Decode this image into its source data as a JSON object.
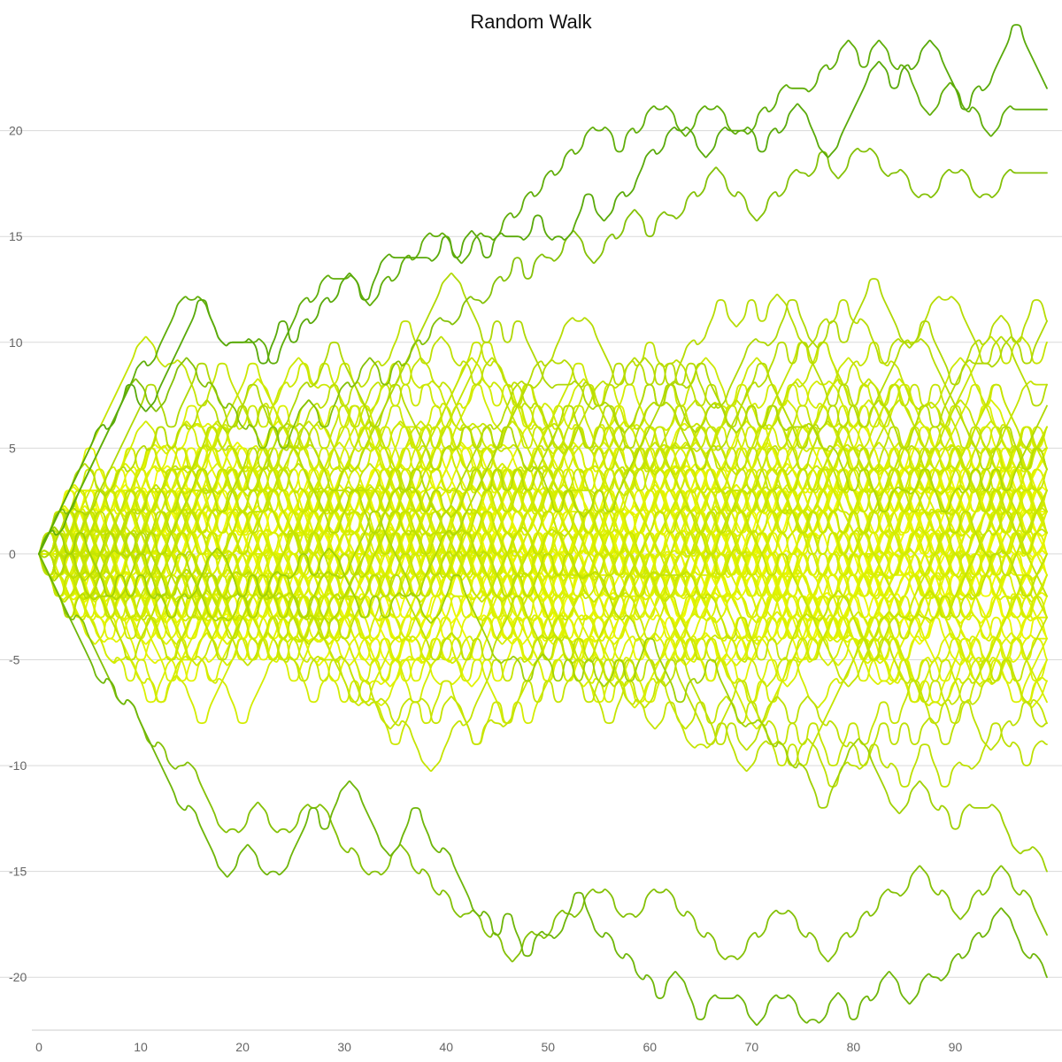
{
  "chart_data": {
    "type": "line",
    "title": "Random Walk",
    "xlabel": "",
    "ylabel": "",
    "xlim": [
      0,
      99
    ],
    "ylim": [
      -22.5,
      24.5
    ],
    "x_ticks": [
      0,
      10,
      20,
      30,
      40,
      50,
      60,
      70,
      80,
      90
    ],
    "y_ticks": [
      20,
      15,
      10,
      5,
      0,
      -5,
      -10,
      -15,
      -20
    ],
    "grid": "horizontal",
    "legend": "none",
    "n_series": 100,
    "n_steps": 100,
    "step_size": 1,
    "color_from": "#f7ff00",
    "color_to": "#5aaa0a",
    "grid_color": "#d9d9d9",
    "axis_color": "#cccccc",
    "series": [
      {
        "values": [
          0,
          1,
          2,
          3,
          4,
          5,
          6,
          6,
          7,
          8,
          7,
          7,
          8,
          9,
          10,
          11,
          12,
          11,
          10,
          10,
          10,
          10,
          9,
          10,
          11,
          10,
          11,
          11,
          12,
          12,
          13,
          13,
          12,
          13,
          14,
          14,
          14,
          14,
          14,
          14,
          15,
          14,
          15,
          15,
          14,
          15,
          15,
          15,
          15,
          16,
          15,
          15,
          15,
          16,
          17,
          16,
          16,
          17,
          17,
          18,
          19,
          19,
          20,
          20,
          20,
          19,
          19,
          20,
          20,
          20,
          20,
          19,
          20,
          20,
          21,
          21,
          20,
          19,
          19,
          20,
          21,
          22,
          23,
          23,
          22,
          23,
          23,
          24,
          24,
          23,
          22,
          21,
          22,
          22,
          23,
          24,
          25,
          24,
          23,
          22
        ]
      },
      {
        "values": [
          0,
          -1,
          -2,
          -3,
          -4,
          -5,
          -6,
          -6,
          -7,
          -7,
          -8,
          -9,
          -10,
          -11,
          -12,
          -12,
          -13,
          -14,
          -15,
          -15,
          -14,
          -14,
          -15,
          -15,
          -15,
          -14,
          -13,
          -12,
          -13,
          -12,
          -11,
          -11,
          -12,
          -13,
          -14,
          -14,
          -13,
          -12,
          -13,
          -14,
          -14,
          -15,
          -16,
          -17,
          -17,
          -18,
          -17,
          -18,
          -19,
          -18,
          -18,
          -18,
          -17,
          -16,
          -17,
          -18,
          -18,
          -19,
          -19,
          -20,
          -20,
          -21,
          -20,
          -20,
          -21,
          -22,
          -21,
          -21,
          -21,
          -21,
          -22,
          -22,
          -21,
          -21,
          -21,
          -22,
          -22,
          -22,
          -21,
          -21,
          -22,
          -21,
          -21,
          -20,
          -20,
          -21,
          -21,
          -20,
          -20,
          -20,
          -19,
          -19,
          -18,
          -18,
          -17,
          -17,
          -18,
          -19,
          -19,
          -20
        ]
      },
      {
        "values": [
          0,
          1,
          1,
          2,
          3,
          4,
          5,
          6,
          7,
          8,
          9,
          9,
          10,
          11,
          12,
          12,
          12,
          11,
          10,
          10,
          10,
          10,
          10,
          9,
          10,
          11,
          12,
          12,
          13,
          13,
          13,
          13,
          12,
          12,
          13,
          13,
          14,
          14,
          15,
          15,
          15,
          14,
          14,
          15,
          15,
          15,
          16,
          16,
          17,
          17,
          18,
          18,
          19,
          19,
          20,
          20,
          20,
          19,
          20,
          20,
          21,
          21,
          21,
          20,
          20,
          21,
          21,
          21,
          20,
          20,
          20,
          21,
          21,
          22,
          22,
          22,
          22,
          23,
          23,
          24,
          24,
          23,
          24,
          24,
          23,
          23,
          22,
          21,
          21,
          22,
          22,
          21,
          21,
          20,
          20,
          21,
          21,
          21,
          21,
          21
        ]
      },
      {
        "values": [
          0,
          -1,
          -2,
          -3,
          -3,
          -4,
          -5,
          -6,
          -7,
          -7,
          -8,
          -9,
          -9,
          -10,
          -10,
          -10,
          -11,
          -12,
          -13,
          -13,
          -13,
          -12,
          -12,
          -13,
          -13,
          -13,
          -12,
          -12,
          -12,
          -13,
          -14,
          -14,
          -15,
          -15,
          -15,
          -14,
          -14,
          -15,
          -15,
          -16,
          -16,
          -17,
          -17,
          -17,
          -18,
          -18,
          -19,
          -19,
          -18,
          -18,
          -18,
          -17,
          -17,
          -17,
          -16,
          -16,
          -16,
          -17,
          -17,
          -17,
          -16,
          -16,
          -16,
          -17,
          -17,
          -18,
          -18,
          -19,
          -19,
          -19,
          -18,
          -18,
          -17,
          -17,
          -17,
          -18,
          -18,
          -19,
          -19,
          -18,
          -18,
          -17,
          -17,
          -16,
          -16,
          -16,
          -15,
          -15,
          -16,
          -16,
          -17,
          -17,
          -16,
          -16,
          -15,
          -15,
          -16,
          -16,
          -17,
          -18
        ]
      },
      {
        "values": [
          0,
          1,
          2,
          2,
          3,
          4,
          5,
          6,
          7,
          8,
          8,
          7,
          7,
          8,
          9,
          9,
          8,
          8,
          7,
          7,
          6,
          6,
          5,
          6,
          5,
          6,
          7,
          7,
          6,
          7,
          8,
          8,
          9,
          9,
          8,
          9,
          9,
          10,
          10,
          11,
          11,
          11,
          12,
          12,
          12,
          13,
          13,
          14,
          13,
          14,
          14,
          14,
          15,
          15,
          14,
          14,
          15,
          15,
          16,
          16,
          15,
          16,
          16,
          16,
          17,
          17,
          18,
          18,
          17,
          17,
          16,
          16,
          17,
          17,
          18,
          18,
          18,
          19,
          18,
          18,
          19,
          19,
          19,
          18,
          18,
          18,
          17,
          17,
          17,
          18,
          18,
          18,
          17,
          17,
          17,
          18,
          18,
          18,
          18,
          18
        ]
      }
    ]
  }
}
